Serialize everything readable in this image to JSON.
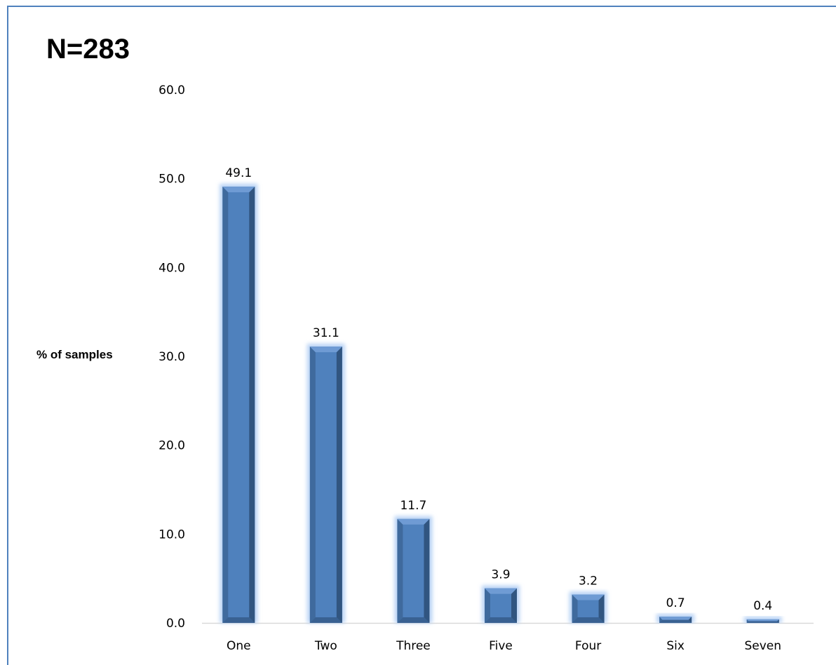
{
  "chart_data": {
    "type": "bar",
    "title": "N=283",
    "xlabel": "",
    "ylabel": "% of samples",
    "categories": [
      "One",
      "Two",
      "Three",
      "Five",
      "Four",
      "Six",
      "Seven"
    ],
    "values": [
      49.1,
      31.1,
      11.7,
      3.9,
      3.2,
      0.7,
      0.4
    ],
    "value_labels": [
      "49.1",
      "31.1",
      "11.7",
      "3.9",
      "3.2",
      "0.7",
      "0.4"
    ],
    "ylim": [
      0,
      60
    ],
    "yticks": [
      "0.0",
      "10.0",
      "20.0",
      "30.0",
      "40.0",
      "50.0",
      "60.0"
    ],
    "grid": false,
    "legend": "none",
    "bar_color": "#4f81bd",
    "bar_shadow_color": "#2c4d75",
    "glow_color": "#b9d3f5",
    "frame_color": "#4f81bd",
    "axis_color": "#d9d9d9"
  }
}
